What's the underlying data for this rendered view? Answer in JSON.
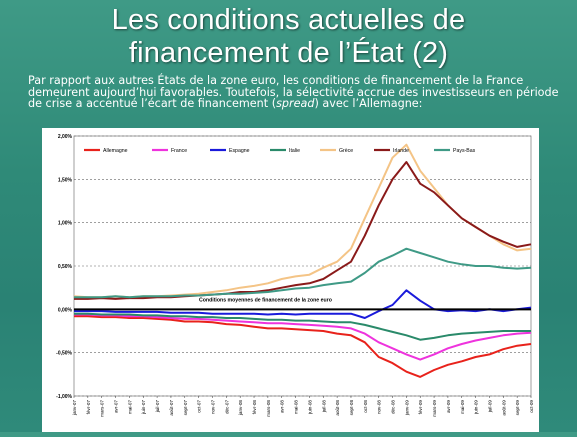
{
  "slide": {
    "title_line1": "Les conditions actuelles de",
    "title_line2": "financement de l’État (2)",
    "intro_before": "Par rapport aux autres États de la zone euro, les conditions de financement de la France demeurent aujourd’hui favorables. Toutefois, la sélectivité accrue des investisseurs en période de crise a accentué l’écart de financement (",
    "intro_em": "spread",
    "intro_after": ") avec l’Allemagne:"
  },
  "chart_data": {
    "type": "line",
    "title": "",
    "xlabel": "",
    "ylabel": "",
    "ylim": [
      -1.0,
      2.0
    ],
    "yticks": [
      -1.0,
      -0.5,
      0.0,
      0.5,
      1.0,
      1.5,
      2.0
    ],
    "ytick_labels": [
      "-1,00%",
      "-0,50%",
      "0,00%",
      "0,50%",
      "1,00%",
      "1,50%",
      "2,00%"
    ],
    "grid": true,
    "legend_position": "top",
    "annotation": "Conditions moyennes de financement de la zone euro",
    "x_labels": [
      "janv-07",
      "févr-07",
      "mars-07",
      "avr-07",
      "mai-07",
      "juin-07",
      "juil-07",
      "août-07",
      "sept-07",
      "oct-07",
      "nov-07",
      "déc-07",
      "janv-08",
      "févr-08",
      "mars-08",
      "avr-08",
      "mai-08",
      "juin-08",
      "juil-08",
      "août-08",
      "sept-08",
      "oct-08",
      "nov-08",
      "déc-08",
      "janv-09",
      "févr-09",
      "mars-09",
      "avr-09",
      "mai-09",
      "juin-09",
      "juil-09",
      "août-09",
      "sept-09",
      "oct-09"
    ],
    "series": [
      {
        "name": "Allemagne",
        "color": "#e8221b",
        "values": [
          -0.08,
          -0.08,
          -0.09,
          -0.09,
          -0.1,
          -0.1,
          -0.11,
          -0.12,
          -0.14,
          -0.14,
          -0.15,
          -0.17,
          -0.18,
          -0.2,
          -0.22,
          -0.22,
          -0.23,
          -0.24,
          -0.25,
          -0.28,
          -0.3,
          -0.38,
          -0.55,
          -0.62,
          -0.72,
          -0.78,
          -0.7,
          -0.64,
          -0.6,
          -0.55,
          -0.52,
          -0.46,
          -0.42,
          -0.4
        ]
      },
      {
        "name": "France",
        "color": "#ee33dd",
        "values": [
          -0.06,
          -0.06,
          -0.07,
          -0.07,
          -0.08,
          -0.08,
          -0.09,
          -0.1,
          -0.11,
          -0.11,
          -0.12,
          -0.13,
          -0.14,
          -0.15,
          -0.16,
          -0.16,
          -0.17,
          -0.18,
          -0.19,
          -0.2,
          -0.22,
          -0.28,
          -0.38,
          -0.45,
          -0.52,
          -0.58,
          -0.52,
          -0.45,
          -0.4,
          -0.36,
          -0.33,
          -0.3,
          -0.28,
          -0.27
        ]
      },
      {
        "name": "Espagne",
        "color": "#1a1adb",
        "values": [
          -0.02,
          -0.02,
          -0.02,
          -0.03,
          -0.03,
          -0.03,
          -0.03,
          -0.04,
          -0.04,
          -0.04,
          -0.05,
          -0.05,
          -0.05,
          -0.05,
          -0.06,
          -0.05,
          -0.06,
          -0.05,
          -0.05,
          -0.05,
          -0.05,
          -0.1,
          -0.02,
          0.05,
          0.22,
          0.1,
          0.0,
          -0.02,
          -0.01,
          -0.02,
          0.0,
          -0.02,
          0.0,
          0.02
        ]
      },
      {
        "name": "Italie",
        "color": "#2a8a6a",
        "values": [
          -0.05,
          -0.05,
          -0.06,
          -0.06,
          -0.06,
          -0.07,
          -0.07,
          -0.08,
          -0.08,
          -0.09,
          -0.09,
          -0.1,
          -0.1,
          -0.11,
          -0.12,
          -0.12,
          -0.13,
          -0.13,
          -0.14,
          -0.15,
          -0.15,
          -0.18,
          -0.22,
          -0.26,
          -0.3,
          -0.35,
          -0.33,
          -0.3,
          -0.28,
          -0.27,
          -0.26,
          -0.25,
          -0.25,
          -0.25
        ]
      },
      {
        "name": "Grèce",
        "color": "#f4c486",
        "values": [
          0.15,
          0.14,
          0.14,
          0.15,
          0.14,
          0.15,
          0.15,
          0.16,
          0.17,
          0.18,
          0.2,
          0.22,
          0.25,
          0.27,
          0.3,
          0.35,
          0.38,
          0.4,
          0.48,
          0.55,
          0.7,
          1.05,
          1.4,
          1.75,
          1.9,
          1.6,
          1.4,
          1.2,
          1.05,
          0.95,
          0.85,
          0.75,
          0.68,
          0.7
        ]
      },
      {
        "name": "Irlande",
        "color": "#8a1a1a",
        "values": [
          0.12,
          0.12,
          0.13,
          0.12,
          0.13,
          0.13,
          0.14,
          0.14,
          0.15,
          0.16,
          0.17,
          0.18,
          0.2,
          0.2,
          0.22,
          0.25,
          0.28,
          0.3,
          0.35,
          0.45,
          0.55,
          0.85,
          1.2,
          1.5,
          1.7,
          1.45,
          1.35,
          1.2,
          1.05,
          0.95,
          0.85,
          0.78,
          0.72,
          0.75
        ]
      },
      {
        "name": "Pays-Bas",
        "color": "#3f9a86",
        "values": [
          0.14,
          0.14,
          0.14,
          0.15,
          0.14,
          0.15,
          0.15,
          0.15,
          0.16,
          0.16,
          0.17,
          0.18,
          0.18,
          0.19,
          0.2,
          0.22,
          0.24,
          0.25,
          0.28,
          0.3,
          0.32,
          0.42,
          0.55,
          0.62,
          0.7,
          0.65,
          0.6,
          0.55,
          0.52,
          0.5,
          0.5,
          0.48,
          0.47,
          0.48
        ]
      }
    ]
  }
}
